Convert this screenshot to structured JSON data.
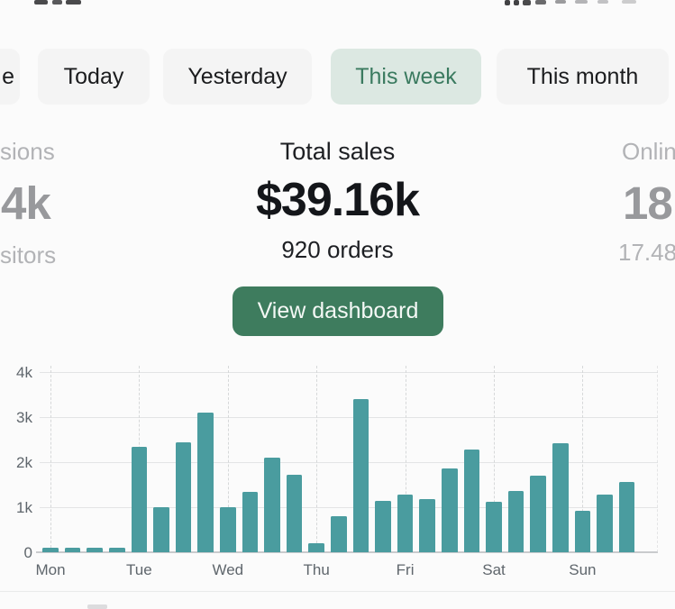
{
  "tabs": {
    "items": [
      {
        "label": "e",
        "selected": false
      },
      {
        "label": "Today",
        "selected": false
      },
      {
        "label": "Yesterday",
        "selected": false
      },
      {
        "label": "This week",
        "selected": true
      },
      {
        "label": "This month",
        "selected": false
      }
    ],
    "selected_bg": "#dce8e2",
    "selected_text": "#3a7a5f"
  },
  "stats": {
    "left": {
      "top_label": "sions",
      "value": "4k",
      "bottom_label": "sitors"
    },
    "center": {
      "label": "Total sales",
      "value": "$39.16k",
      "sub": "920 orders"
    },
    "right": {
      "top_label": "Onlin",
      "value": "18.",
      "bottom_label": "17.48"
    }
  },
  "button": {
    "label": "View dashboard",
    "bg": "#3e7c5e"
  },
  "chart_data": {
    "type": "bar",
    "title": "",
    "xlabel": "",
    "ylabel": "",
    "bar_color": "#4a9c9f",
    "values_k": [
      0.1,
      0.1,
      0.1,
      0.1,
      2.35,
      1.0,
      2.45,
      3.1,
      1.0,
      1.35,
      2.1,
      1.72,
      0.2,
      0.8,
      3.4,
      1.15,
      1.28,
      1.18,
      1.86,
      2.28,
      1.12,
      1.36,
      1.7,
      2.42,
      0.92,
      1.28,
      1.56
    ],
    "x_tick_labels": [
      "Mon",
      "Tue",
      "Wed",
      "Thu",
      "Fri",
      "Sat",
      "Sun"
    ],
    "x_tick_bar_indices": [
      0,
      4,
      8,
      12,
      16,
      20,
      24
    ],
    "y_tick_labels": [
      "0",
      "1k",
      "2k",
      "3k",
      "4k"
    ],
    "y_ticks_k": [
      0,
      1,
      2,
      3,
      4
    ],
    "ylim_k": [
      0,
      4
    ],
    "grid": true,
    "legend": "none"
  }
}
